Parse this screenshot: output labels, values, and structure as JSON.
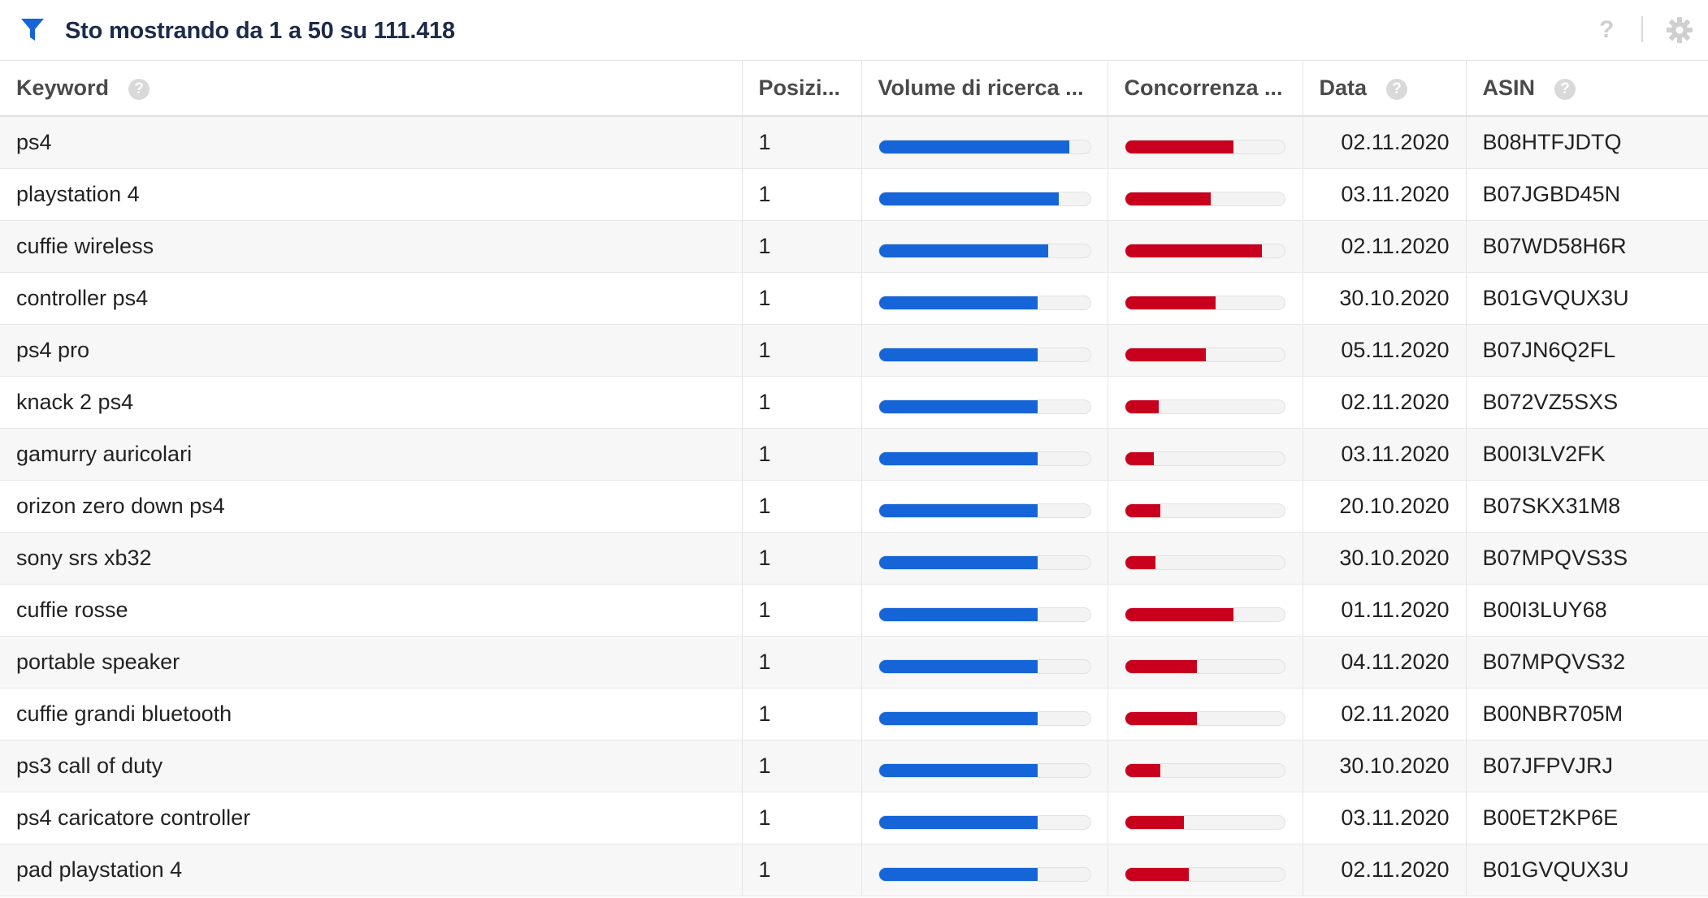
{
  "header": {
    "title": "Sto mostrando da 1 a 50 su 111.418",
    "help": "?"
  },
  "columns": [
    {
      "key": "keyword",
      "label": "Keyword",
      "help": "?"
    },
    {
      "key": "position",
      "label": "Posizi..."
    },
    {
      "key": "volume",
      "label": "Volume di ricerca ..."
    },
    {
      "key": "competition",
      "label": "Concorrenza ..."
    },
    {
      "key": "date",
      "label": "Data",
      "help": "?"
    },
    {
      "key": "asin",
      "label": "ASIN",
      "help": "?"
    }
  ],
  "colors": {
    "volume_bar": "#1665d8",
    "competition_bar": "#c8001e",
    "filter_icon": "#1665d8"
  },
  "rows": [
    {
      "keyword": "ps4",
      "position": "1",
      "volume": 0.9,
      "competition": 0.68,
      "date": "02.11.2020",
      "asin": "B08HTFJDTQ"
    },
    {
      "keyword": "playstation 4",
      "position": "1",
      "volume": 0.85,
      "competition": 0.54,
      "date": "03.11.2020",
      "asin": "B07JGBD45N"
    },
    {
      "keyword": "cuffie wireless",
      "position": "1",
      "volume": 0.8,
      "competition": 0.86,
      "date": "02.11.2020",
      "asin": "B07WD58H6R"
    },
    {
      "keyword": "controller ps4",
      "position": "1",
      "volume": 0.75,
      "competition": 0.57,
      "date": "30.10.2020",
      "asin": "B01GVQUX3U"
    },
    {
      "keyword": "ps4 pro",
      "position": "1",
      "volume": 0.75,
      "competition": 0.51,
      "date": "05.11.2020",
      "asin": "B07JN6Q2FL"
    },
    {
      "keyword": "knack 2 ps4",
      "position": "1",
      "volume": 0.75,
      "competition": 0.21,
      "date": "02.11.2020",
      "asin": "B072VZ5SXS"
    },
    {
      "keyword": "gamurry auricolari",
      "position": "1",
      "volume": 0.75,
      "competition": 0.18,
      "date": "03.11.2020",
      "asin": "B00I3LV2FK"
    },
    {
      "keyword": "orizon zero down ps4",
      "position": "1",
      "volume": 0.75,
      "competition": 0.22,
      "date": "20.10.2020",
      "asin": "B07SKX31M8"
    },
    {
      "keyword": "sony srs xb32",
      "position": "1",
      "volume": 0.75,
      "competition": 0.19,
      "date": "30.10.2020",
      "asin": "B07MPQVS3S"
    },
    {
      "keyword": "cuffie rosse",
      "position": "1",
      "volume": 0.75,
      "competition": 0.68,
      "date": "01.11.2020",
      "asin": "B00I3LUY68"
    },
    {
      "keyword": "portable speaker",
      "position": "1",
      "volume": 0.75,
      "competition": 0.45,
      "date": "04.11.2020",
      "asin": "B07MPQVS32"
    },
    {
      "keyword": "cuffie grandi bluetooth",
      "position": "1",
      "volume": 0.75,
      "competition": 0.45,
      "date": "02.11.2020",
      "asin": "B00NBR705M"
    },
    {
      "keyword": "ps3 call of duty",
      "position": "1",
      "volume": 0.75,
      "competition": 0.22,
      "date": "30.10.2020",
      "asin": "B07JFPVJRJ"
    },
    {
      "keyword": "ps4 caricatore controller",
      "position": "1",
      "volume": 0.75,
      "competition": 0.37,
      "date": "03.11.2020",
      "asin": "B00ET2KP6E"
    },
    {
      "keyword": "pad playstation 4",
      "position": "1",
      "volume": 0.75,
      "competition": 0.4,
      "date": "02.11.2020",
      "asin": "B01GVQUX3U"
    }
  ]
}
